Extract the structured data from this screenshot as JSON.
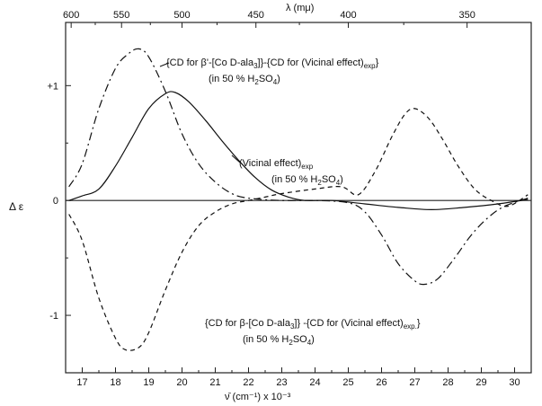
{
  "chart_data": {
    "type": "line",
    "xlabel": "ν̄ (cm⁻¹) x 10⁻³",
    "ylabel": "Δ ε",
    "top_axis_label": "λ (mμ)",
    "xlim": [
      16.5,
      30.5
    ],
    "ylim": [
      -1.5,
      1.55
    ],
    "x_ticks": [
      "17",
      "18",
      "19",
      "20",
      "21",
      "22",
      "23",
      "24",
      "25",
      "26",
      "27",
      "28",
      "29",
      "30"
    ],
    "y_ticks": [
      {
        "value": 1,
        "label": "+1"
      },
      {
        "value": 0,
        "label": "0"
      },
      {
        "value": -1,
        "label": "-1"
      }
    ],
    "top_ticks": [
      {
        "value": 600,
        "label": "600"
      },
      {
        "value": 550,
        "label": "550"
      },
      {
        "value": 500,
        "label": "500"
      },
      {
        "value": 450,
        "label": "450"
      },
      {
        "value": 400,
        "label": "400"
      },
      {
        "value": 350,
        "label": "350"
      }
    ],
    "annotations": {
      "a1_line1": "{CD for β'-[Co D-ala",
      "a1_sub1": "3",
      "a1_line1b": "]}-{CD for (Vicinal effect)",
      "a1_sub2": "exp",
      "a1_end": "}",
      "a1_line2": "(in 50 % H",
      "a1_sub3": "2",
      "a1_line2b": "SO",
      "a1_sub4": "4",
      "a1_line2c": ")",
      "vic_line1": "(Vicinal effect)",
      "vic_sub": "exp",
      "vic_line2": "(in 50 % H",
      "vic_sub2": "2",
      "vic_line2b": "SO",
      "vic_sub3": "4",
      "vic_line2c": ")",
      "b_line1": "{CD for β-[Co D-ala",
      "b_sub1": "3",
      "b_line1b": "]} -{CD for (Vicinal effect)",
      "b_sub2": "exp.",
      "b_end": "}",
      "b_line2": "(in 50 % H",
      "b_sub3": "2",
      "b_line2b": "SO",
      "b_sub4": "4",
      "b_line2c": ")"
    },
    "series": [
      {
        "style": "solid",
        "x": [
          16.6,
          17.0,
          17.5,
          18.0,
          18.5,
          19.0,
          19.5,
          19.8,
          20.2,
          20.7,
          21.2,
          21.7,
          22.2,
          22.7,
          23.2,
          23.7,
          24.5,
          25.5,
          26.5,
          27.5,
          28.5,
          29.5,
          30.4
        ],
        "y": [
          0.0,
          0.04,
          0.1,
          0.3,
          0.55,
          0.8,
          0.93,
          0.94,
          0.86,
          0.7,
          0.52,
          0.35,
          0.2,
          0.09,
          0.03,
          0.0,
          0.0,
          -0.03,
          -0.06,
          -0.08,
          -0.06,
          -0.03,
          0.01
        ]
      },
      {
        "style": "dashdot",
        "x": [
          16.6,
          17.0,
          17.5,
          18.0,
          18.4,
          18.7,
          19.0,
          19.5,
          20.0,
          20.5,
          21.0,
          21.5,
          22.0,
          23.0,
          24.0,
          25.0,
          25.5,
          26.0,
          26.5,
          27.0,
          27.3,
          27.7,
          28.2,
          28.7,
          29.2,
          29.7,
          30.4
        ],
        "y": [
          0.12,
          0.32,
          0.8,
          1.15,
          1.28,
          1.32,
          1.25,
          0.95,
          0.58,
          0.32,
          0.16,
          0.06,
          0.02,
          0.0,
          0.0,
          -0.02,
          -0.1,
          -0.3,
          -0.55,
          -0.7,
          -0.73,
          -0.68,
          -0.5,
          -0.3,
          -0.15,
          -0.05,
          0.02
        ]
      },
      {
        "style": "dashed",
        "x": [
          16.6,
          17.0,
          17.5,
          18.0,
          18.3,
          18.7,
          19.0,
          19.5,
          20.0,
          20.5,
          21.0,
          21.5,
          22.0,
          22.5,
          23.0,
          24.0,
          24.8,
          25.3,
          25.8,
          26.3,
          26.7,
          27.0,
          27.4,
          27.8,
          28.3,
          28.8,
          29.3,
          29.8,
          30.4
        ],
        "y": [
          -0.12,
          -0.35,
          -0.85,
          -1.2,
          -1.3,
          -1.28,
          -1.15,
          -0.78,
          -0.45,
          -0.22,
          -0.1,
          -0.03,
          0.0,
          0.03,
          0.06,
          0.1,
          0.12,
          0.05,
          0.25,
          0.55,
          0.75,
          0.8,
          0.72,
          0.55,
          0.3,
          0.1,
          0.0,
          -0.05,
          0.05
        ]
      }
    ]
  }
}
